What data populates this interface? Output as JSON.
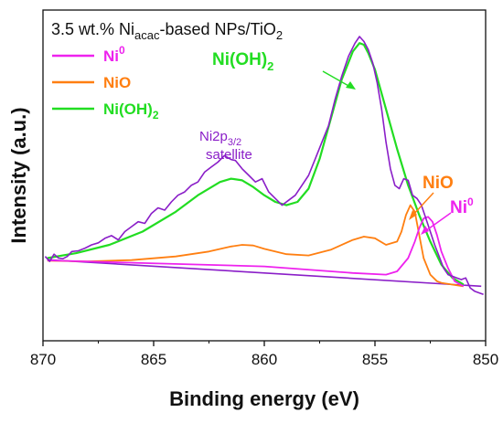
{
  "chart_data": {
    "type": "line",
    "title": {
      "prefix": "3.5 wt.% Ni",
      "sub": "acac",
      "suffix": "-based NPs/TiO",
      "sub2": "2"
    },
    "xlabel": "Binding energy (eV)",
    "ylabel": "Intensity (a.u.)",
    "xlim": [
      870,
      850
    ],
    "ylim": [
      0,
      1
    ],
    "x_ticks": [
      "870",
      "865",
      "860",
      "855",
      "850"
    ],
    "x_tick_values": [
      870,
      865,
      860,
      855,
      850
    ],
    "legend": [
      {
        "base": "Ni",
        "sup": "0",
        "sub": "",
        "color": "#ee22ee"
      },
      {
        "base": "NiO",
        "sup": "",
        "sub": "",
        "color": "#ff7f11"
      },
      {
        "base": "Ni(OH)",
        "sup": "",
        "sub": "2",
        "color": "#22dd22"
      }
    ],
    "annotations": {
      "nioh2": {
        "base": "Ni(OH)",
        "sub": "2"
      },
      "satellite": {
        "line1_base": "Ni2p",
        "line1_sub": "3/2",
        "line2": "satellite"
      },
      "nio": "NiO",
      "ni0": {
        "base": "Ni",
        "sup": "0"
      }
    },
    "colors": {
      "experimental": "#8a1ec8",
      "background": "#8a1ec8",
      "ni0": "#ee22ee",
      "nio": "#ff7f11",
      "nioh2": "#22dd22"
    },
    "series": [
      {
        "name": "experimental",
        "x": [
          869.9,
          869.7,
          869.5,
          869.3,
          869.1,
          868.9,
          868.7,
          868.4,
          868.1,
          867.8,
          867.5,
          867.2,
          866.9,
          866.6,
          866.3,
          866.0,
          865.7,
          865.4,
          865.1,
          864.8,
          864.5,
          864.2,
          863.9,
          863.6,
          863.3,
          863.0,
          862.7,
          862.4,
          862.1,
          861.8,
          861.5,
          861.3,
          861.0,
          860.7,
          860.4,
          860.1,
          859.8,
          859.5,
          859.2,
          858.9,
          858.6,
          858.3,
          858.0,
          857.7,
          857.4,
          857.1,
          856.8,
          856.5,
          856.2,
          855.9,
          855.7,
          855.5,
          855.3,
          855.1,
          854.9,
          854.7,
          854.5,
          854.3,
          854.1,
          853.9,
          853.7,
          853.5,
          853.3,
          853.1,
          852.9,
          852.7,
          852.5,
          852.3,
          852.1,
          851.9,
          851.7,
          851.5,
          851.3,
          851.1,
          850.9,
          850.7,
          850.5,
          850.3,
          850.1
        ],
        "y": [
          0.255,
          0.24,
          0.262,
          0.25,
          0.248,
          0.255,
          0.27,
          0.272,
          0.28,
          0.29,
          0.296,
          0.31,
          0.318,
          0.305,
          0.33,
          0.345,
          0.36,
          0.355,
          0.385,
          0.402,
          0.395,
          0.42,
          0.44,
          0.45,
          0.47,
          0.48,
          0.51,
          0.525,
          0.54,
          0.56,
          0.548,
          0.545,
          0.52,
          0.5,
          0.48,
          0.49,
          0.45,
          0.43,
          0.41,
          0.425,
          0.44,
          0.47,
          0.5,
          0.55,
          0.6,
          0.65,
          0.73,
          0.8,
          0.86,
          0.9,
          0.92,
          0.905,
          0.88,
          0.84,
          0.78,
          0.7,
          0.6,
          0.52,
          0.47,
          0.46,
          0.49,
          0.485,
          0.44,
          0.43,
          0.41,
          0.37,
          0.33,
          0.29,
          0.255,
          0.22,
          0.2,
          0.195,
          0.19,
          0.185,
          0.19,
          0.16,
          0.15,
          0.145,
          0.14
        ]
      },
      {
        "name": "background",
        "x": [
          869.8,
          850.2
        ],
        "y": [
          0.245,
          0.165
        ]
      },
      {
        "name": "Ni(OH)2 fit",
        "x": [
          869.8,
          868.5,
          867.0,
          865.5,
          864.0,
          863.0,
          862.0,
          861.5,
          861.0,
          860.5,
          860.0,
          859.5,
          859.0,
          858.5,
          858.0,
          857.5,
          857.0,
          856.5,
          856.0,
          855.7,
          855.5,
          855.3,
          855.0,
          854.5,
          854.0,
          853.5,
          853.0,
          852.5,
          852.0,
          851.5,
          851.0
        ],
        "y": [
          0.25,
          0.265,
          0.29,
          0.33,
          0.39,
          0.44,
          0.48,
          0.49,
          0.485,
          0.465,
          0.44,
          0.42,
          0.41,
          0.42,
          0.46,
          0.55,
          0.67,
          0.79,
          0.875,
          0.9,
          0.895,
          0.87,
          0.82,
          0.7,
          0.58,
          0.47,
          0.38,
          0.3,
          0.23,
          0.19,
          0.17
        ]
      },
      {
        "name": "NiO fit",
        "x": [
          869.8,
          868.0,
          866.0,
          864.0,
          862.5,
          861.5,
          861.0,
          860.5,
          860.0,
          859.0,
          858.0,
          857.0,
          856.0,
          855.5,
          855.0,
          854.5,
          854.0,
          853.8,
          853.6,
          853.4,
          853.2,
          853.0,
          852.8,
          852.5,
          852.2,
          852.0,
          851.5,
          851.0
        ],
        "y": [
          0.242,
          0.24,
          0.244,
          0.255,
          0.27,
          0.285,
          0.29,
          0.288,
          0.278,
          0.262,
          0.258,
          0.275,
          0.305,
          0.315,
          0.31,
          0.29,
          0.3,
          0.33,
          0.38,
          0.41,
          0.39,
          0.32,
          0.25,
          0.2,
          0.18,
          0.175,
          0.17,
          0.165
        ]
      },
      {
        "name": "Ni0 fit",
        "x": [
          869.8,
          860.0,
          856.0,
          854.5,
          854.0,
          853.5,
          853.2,
          853.0,
          852.8,
          852.6,
          852.4,
          852.2,
          852.0,
          851.7,
          851.4,
          851.0
        ],
        "y": [
          0.243,
          0.225,
          0.205,
          0.2,
          0.21,
          0.25,
          0.3,
          0.34,
          0.37,
          0.375,
          0.36,
          0.32,
          0.27,
          0.22,
          0.18,
          0.165
        ]
      }
    ]
  }
}
